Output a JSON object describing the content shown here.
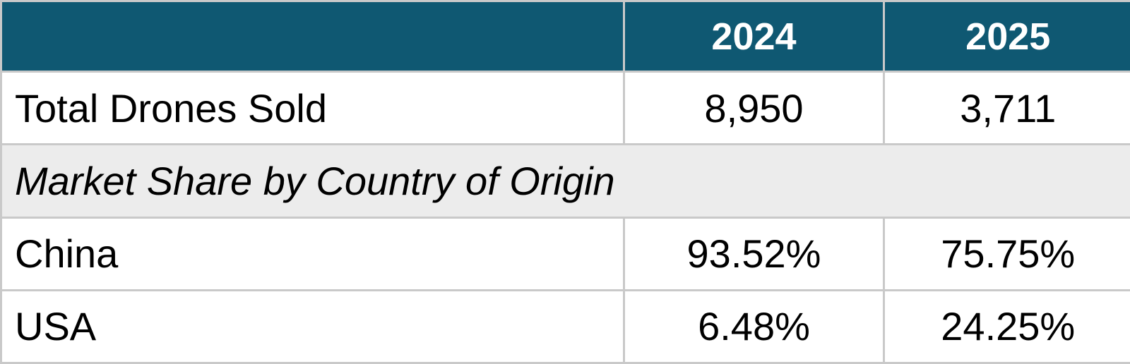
{
  "chart_data": {
    "type": "table",
    "columns": [
      "",
      "2024",
      "2025"
    ],
    "rows": [
      {
        "kind": "data",
        "label": "Total Drones Sold",
        "values": [
          "8,950",
          "3,711"
        ]
      },
      {
        "kind": "section",
        "label": "Market Share by Country of Origin",
        "values": []
      },
      {
        "kind": "data",
        "label": "China",
        "values": [
          "93.52%",
          "75.75%"
        ]
      },
      {
        "kind": "data",
        "label": "USA",
        "values": [
          "6.48%",
          "24.25%"
        ]
      }
    ],
    "numeric": {
      "total_drones_sold": {
        "2024": 8950,
        "2025": 3711
      },
      "market_share_percent": {
        "China": {
          "2024": 93.52,
          "2025": 75.75
        },
        "USA": {
          "2024": 6.48,
          "2025": 24.25
        }
      }
    }
  },
  "colors": {
    "header_bg": "#0f5872",
    "header_text": "#ffffff",
    "section_bg": "#ececec",
    "row_bg": "#ffffff",
    "grid_line": "#c9c9c9",
    "body_text": "#000000"
  }
}
